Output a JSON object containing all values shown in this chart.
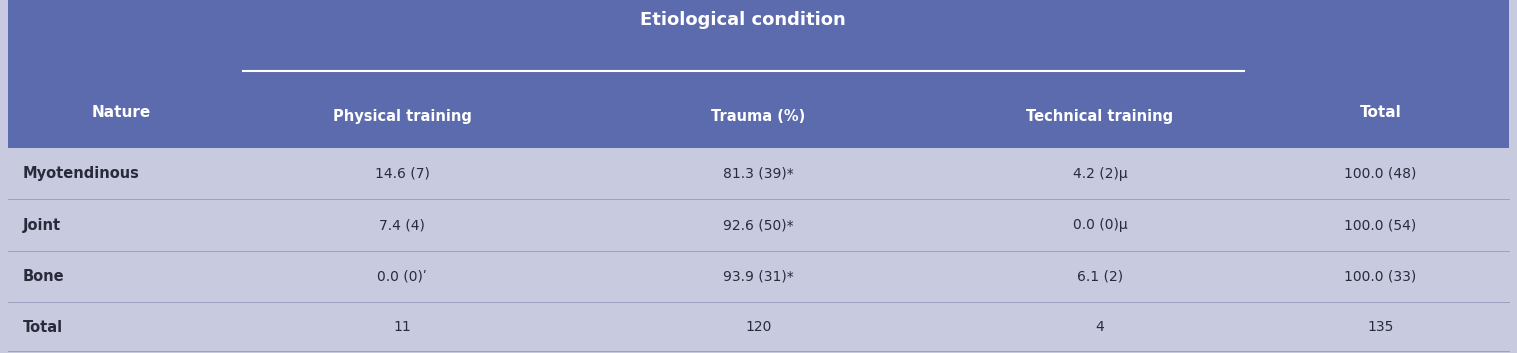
{
  "header_bg_color": "#5B6BAE",
  "body_bg_color": "#C8CBE0",
  "header_text_color": "#ffffff",
  "body_text_color": "#2a2a3a",
  "title_main": "Etiological condition",
  "col_nature": "Nature",
  "col_total": "Total",
  "sub_cols": [
    "Physical training",
    "Trauma (%)",
    "Technical training"
  ],
  "rows": [
    {
      "nature": "Myotendinous",
      "physical": "14.6 (7)",
      "trauma": "81.3 (39)*",
      "technical": "4.2 (2)µ",
      "total": "100.0 (48)",
      "nature_bold": true
    },
    {
      "nature": "Joint",
      "physical": "7.4 (4)",
      "trauma": "92.6 (50)*",
      "technical": "0.0 (0)µ",
      "total": "100.0 (54)",
      "nature_bold": true
    },
    {
      "nature": "Bone",
      "physical": "0.0 (0)ʹ",
      "trauma": "93.9 (31)*",
      "technical": "6.1 (2)",
      "total": "100.0 (33)",
      "nature_bold": true
    },
    {
      "nature": "Total",
      "physical": "11",
      "trauma": "120",
      "technical": "4",
      "total": "135",
      "nature_bold": true
    }
  ],
  "figsize": [
    15.17,
    3.53
  ],
  "dpi": 100
}
